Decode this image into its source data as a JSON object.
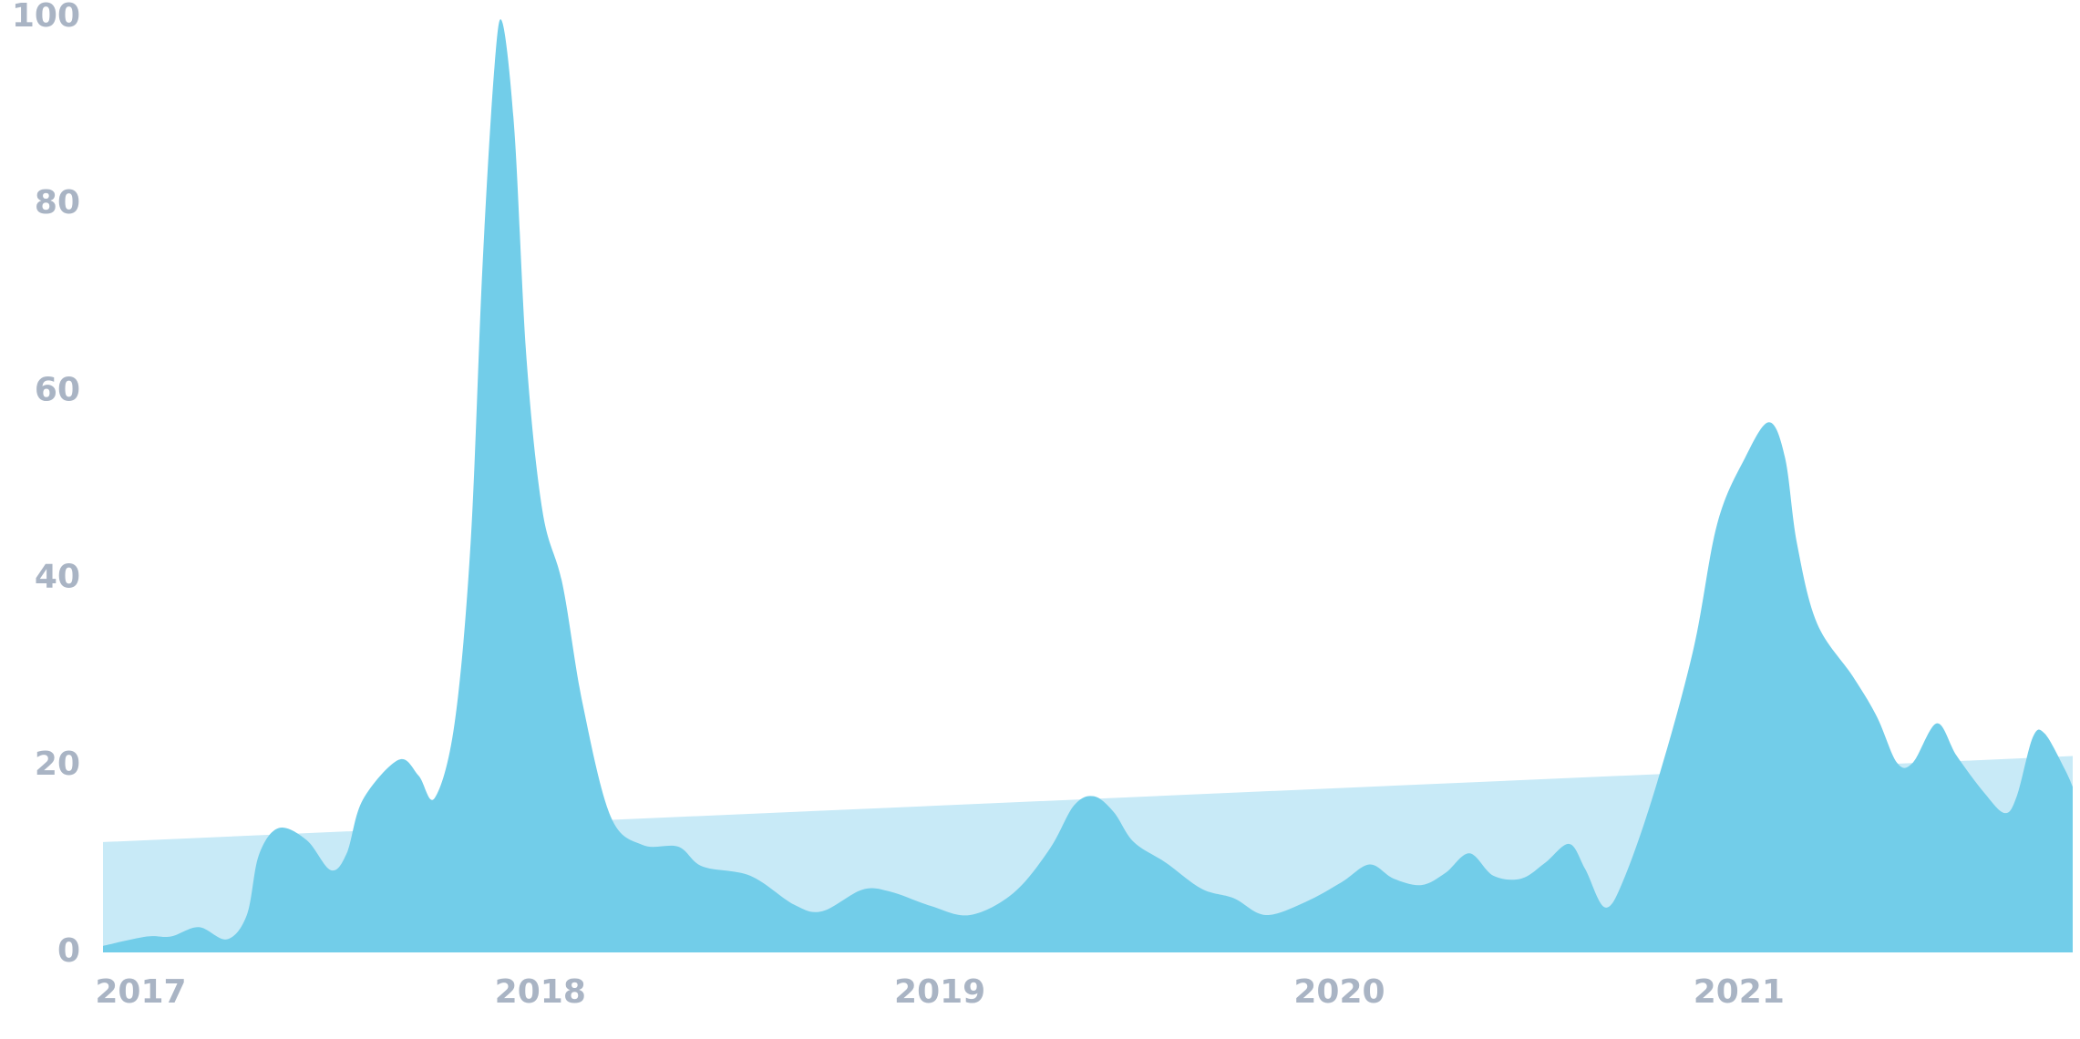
{
  "chart_data": {
    "type": "area",
    "xlim": [
      2016.91,
      2021.84
    ],
    "xticks": [
      2017,
      2018,
      2019,
      2020,
      2021
    ],
    "ylim": [
      0,
      100
    ],
    "yticks": [
      0,
      20,
      40,
      60,
      80,
      100
    ],
    "grid": false,
    "series": [
      {
        "color": "#c8eaf7",
        "x": [
          2016.91,
          2021.84
        ],
        "values": [
          11.8,
          21
        ]
      },
      {
        "color": "#72cde9",
        "x": [
          2016.91,
          2017.02,
          2017.08,
          2017.15,
          2017.22,
          2017.27,
          2017.3,
          2017.35,
          2017.42,
          2017.48,
          2017.52,
          2017.56,
          2017.65,
          2017.7,
          2017.74,
          2017.79,
          2017.83,
          2017.86,
          2017.89,
          2017.91,
          2017.94,
          2017.97,
          2018.01,
          2018.06,
          2018.11,
          2018.18,
          2018.26,
          2018.35,
          2018.41,
          2018.53,
          2018.64,
          2018.71,
          2018.81,
          2018.88,
          2018.98,
          2019.08,
          2019.19,
          2019.28,
          2019.34,
          2019.39,
          2019.44,
          2019.49,
          2019.57,
          2019.66,
          2019.74,
          2019.82,
          2019.92,
          2020.01,
          2020.08,
          2020.14,
          2020.21,
          2020.27,
          2020.33,
          2020.39,
          2020.46,
          2020.52,
          2020.58,
          2020.62,
          2020.67,
          2020.72,
          2020.8,
          2020.89,
          2020.95,
          2021.02,
          2021.08,
          2021.12,
          2021.15,
          2021.2,
          2021.29,
          2021.35,
          2021.4,
          2021.44,
          2021.5,
          2021.55,
          2021.62,
          2021.67,
          2021.7,
          2021.74,
          2021.77,
          2021.82,
          2021.84
        ],
        "values": [
          0.7,
          1.7,
          1.7,
          2.7,
          1.4,
          4,
          10.4,
          13.3,
          12,
          8.8,
          10.6,
          16.3,
          20.6,
          18.9,
          16.5,
          24.5,
          43.7,
          73.5,
          94.8,
          99.4,
          87.7,
          63.5,
          47.2,
          39.4,
          26.7,
          14.6,
          11.5,
          11.3,
          9.2,
          8.2,
          5.1,
          4.4,
          6.7,
          6.5,
          5,
          4,
          6.4,
          11.1,
          15.7,
          16.7,
          15,
          11.8,
          9.6,
          6.8,
          5.8,
          4,
          5.4,
          7.5,
          9.4,
          7.9,
          7.2,
          8.5,
          10.6,
          8.2,
          7.9,
          9.6,
          11.6,
          8.9,
          4.8,
          8.2,
          18.2,
          32.3,
          45.8,
          52.9,
          56.7,
          52.9,
          43.7,
          35.2,
          29.5,
          25.2,
          20.3,
          20.3,
          24.5,
          21,
          17,
          14.9,
          16.7,
          23,
          23.4,
          19.6,
          17.7
        ]
      }
    ]
  }
}
